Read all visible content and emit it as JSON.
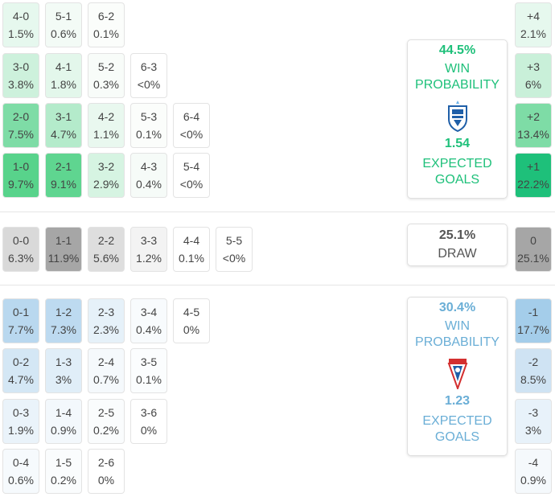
{
  "home": {
    "win_pct": "44.5%",
    "win_label": "WIN PROBABILITY",
    "xg": "1.54",
    "xg_label": "EXPECTED GOALS",
    "accent": "#1ec07a",
    "crest_icon": "lech-poznan-crest"
  },
  "draw": {
    "pct": "25.1%",
    "label": "DRAW"
  },
  "away": {
    "win_pct": "30.4%",
    "win_label": "WIN PROBABILITY",
    "xg": "1.23",
    "xg_label": "EXPECTED GOALS",
    "accent": "#6aaed6",
    "crest_icon": "gornik-zabrze-crest"
  },
  "home_rows": [
    [
      {
        "s": "4-0",
        "p": "1.5%",
        "c": "#e6f8ee"
      },
      {
        "s": "5-1",
        "p": "0.6%",
        "c": "#f3fbf6"
      },
      {
        "s": "6-2",
        "p": "0.1%",
        "c": "#fbfdfb"
      }
    ],
    [
      {
        "s": "3-0",
        "p": "3.8%",
        "c": "#cdf1dc"
      },
      {
        "s": "4-1",
        "p": "1.8%",
        "c": "#e3f7eb"
      },
      {
        "s": "5-2",
        "p": "0.3%",
        "c": "#f8fcf9"
      },
      {
        "s": "6-3",
        "p": "<0%",
        "c": "#ffffff"
      }
    ],
    [
      {
        "s": "2-0",
        "p": "7.5%",
        "c": "#7edca6"
      },
      {
        "s": "3-1",
        "p": "4.7%",
        "c": "#b4ebcb"
      },
      {
        "s": "4-2",
        "p": "1.1%",
        "c": "#e9f8ef"
      },
      {
        "s": "5-3",
        "p": "0.1%",
        "c": "#fbfdfb"
      },
      {
        "s": "6-4",
        "p": "<0%",
        "c": "#ffffff"
      }
    ],
    [
      {
        "s": "1-0",
        "p": "9.7%",
        "c": "#58d38b"
      },
      {
        "s": "2-1",
        "p": "9.1%",
        "c": "#5fd590"
      },
      {
        "s": "3-2",
        "p": "2.9%",
        "c": "#d6f4e2"
      },
      {
        "s": "4-3",
        "p": "0.4%",
        "c": "#f6fbf8"
      },
      {
        "s": "5-4",
        "p": "<0%",
        "c": "#ffffff"
      }
    ]
  ],
  "draw_row": [
    {
      "s": "0-0",
      "p": "6.3%",
      "c": "#d9d9d9"
    },
    {
      "s": "1-1",
      "p": "11.9%",
      "c": "#a6a6a6"
    },
    {
      "s": "2-2",
      "p": "5.6%",
      "c": "#dedede"
    },
    {
      "s": "3-3",
      "p": "1.2%",
      "c": "#f3f3f3"
    },
    {
      "s": "4-4",
      "p": "0.1%",
      "c": "#ffffff"
    },
    {
      "s": "5-5",
      "p": "<0%",
      "c": "#ffffff"
    }
  ],
  "away_rows": [
    [
      {
        "s": "0-1",
        "p": "7.7%",
        "c": "#b9d8ef"
      },
      {
        "s": "1-2",
        "p": "7.3%",
        "c": "#bddaf0"
      },
      {
        "s": "2-3",
        "p": "2.3%",
        "c": "#e6f1f9"
      },
      {
        "s": "3-4",
        "p": "0.4%",
        "c": "#f8fbfd"
      },
      {
        "s": "4-5",
        "p": "0%",
        "c": "#ffffff"
      }
    ],
    [
      {
        "s": "0-2",
        "p": "4.7%",
        "c": "#d4e7f5"
      },
      {
        "s": "1-3",
        "p": "3%",
        "c": "#e0eef8"
      },
      {
        "s": "2-4",
        "p": "0.7%",
        "c": "#f5f9fc"
      },
      {
        "s": "3-5",
        "p": "0.1%",
        "c": "#fbfdfe"
      }
    ],
    [
      {
        "s": "0-3",
        "p": "1.9%",
        "c": "#eaf3fa"
      },
      {
        "s": "1-4",
        "p": "0.9%",
        "c": "#f3f8fc"
      },
      {
        "s": "2-5",
        "p": "0.2%",
        "c": "#fafcfd"
      },
      {
        "s": "3-6",
        "p": "0%",
        "c": "#ffffff"
      }
    ],
    [
      {
        "s": "0-4",
        "p": "0.6%",
        "c": "#f6fafd"
      },
      {
        "s": "1-5",
        "p": "0.2%",
        "c": "#fafcfd"
      },
      {
        "s": "2-6",
        "p": "0%",
        "c": "#ffffff"
      }
    ]
  ],
  "margins": [
    {
      "m": "+4",
      "p": "2.1%",
      "c": "#e6f8ee"
    },
    {
      "m": "+3",
      "p": "6%",
      "c": "#c9f0d9"
    },
    {
      "m": "+2",
      "p": "13.4%",
      "c": "#7edca6"
    },
    {
      "m": "+1",
      "p": "22.2%",
      "c": "#1ec07a"
    },
    {
      "m": "0",
      "p": "25.1%",
      "c": "#a6a6a6"
    },
    {
      "m": "-1",
      "p": "17.7%",
      "c": "#a4cdea"
    },
    {
      "m": "-2",
      "p": "8.5%",
      "c": "#cfe3f3"
    },
    {
      "m": "-3",
      "p": "3%",
      "c": "#e8f2fa"
    },
    {
      "m": "-4",
      "p": "0.9%",
      "c": "#f5f9fc"
    }
  ]
}
